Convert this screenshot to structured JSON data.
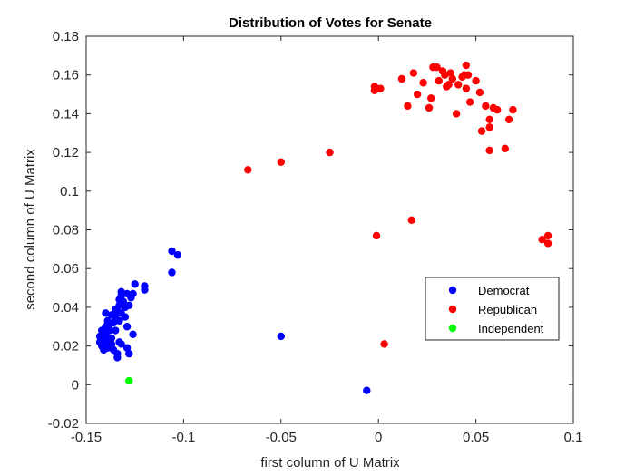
{
  "chart_data": {
    "type": "scatter",
    "title": "Distribution of Votes for Senate",
    "xlabel": "first column of U Matrix",
    "ylabel": "second column of U Matrix",
    "xlim": [
      -0.15,
      0.1
    ],
    "ylim": [
      -0.02,
      0.18
    ],
    "xticks": [
      -0.15,
      -0.1,
      -0.05,
      0,
      0.05,
      0.1
    ],
    "xtick_labels": [
      "-0.15",
      "-0.1",
      "-0.05",
      "0",
      "0.05",
      "0.1"
    ],
    "yticks": [
      -0.02,
      0,
      0.02,
      0.04,
      0.06,
      0.08,
      0.1,
      0.12,
      0.14,
      0.16,
      0.18
    ],
    "ytick_labels": [
      "-0.02",
      "0",
      "0.02",
      "0.04",
      "0.06",
      "0.08",
      "0.1",
      "0.12",
      "0.14",
      "0.16",
      "0.18"
    ],
    "grid": false,
    "legend_position": "lower-right",
    "series": [
      {
        "name": "Democrat",
        "color": "#0000ff",
        "points": [
          [
            -0.143,
            0.025
          ],
          [
            -0.143,
            0.022
          ],
          [
            -0.142,
            0.028
          ],
          [
            -0.142,
            0.02
          ],
          [
            -0.141,
            0.024
          ],
          [
            -0.141,
            0.018
          ],
          [
            -0.14,
            0.03
          ],
          [
            -0.14,
            0.026
          ],
          [
            -0.14,
            0.021
          ],
          [
            -0.14,
            0.037
          ],
          [
            -0.139,
            0.033
          ],
          [
            -0.139,
            0.023
          ],
          [
            -0.139,
            0.019
          ],
          [
            -0.138,
            0.031
          ],
          [
            -0.138,
            0.028
          ],
          [
            -0.137,
            0.036
          ],
          [
            -0.137,
            0.024
          ],
          [
            -0.137,
            0.021
          ],
          [
            -0.136,
            0.032
          ],
          [
            -0.136,
            0.018
          ],
          [
            -0.135,
            0.039
          ],
          [
            -0.135,
            0.035
          ],
          [
            -0.135,
            0.028
          ],
          [
            -0.134,
            0.038
          ],
          [
            -0.134,
            0.014
          ],
          [
            -0.134,
            0.016
          ],
          [
            -0.133,
            0.044
          ],
          [
            -0.133,
            0.041
          ],
          [
            -0.133,
            0.033
          ],
          [
            -0.133,
            0.022
          ],
          [
            -0.132,
            0.048
          ],
          [
            -0.132,
            0.046
          ],
          [
            -0.132,
            0.037
          ],
          [
            -0.132,
            0.021
          ],
          [
            -0.131,
            0.043
          ],
          [
            -0.13,
            0.04
          ],
          [
            -0.13,
            0.035
          ],
          [
            -0.129,
            0.047
          ],
          [
            -0.129,
            0.03
          ],
          [
            -0.129,
            0.019
          ],
          [
            -0.128,
            0.016
          ],
          [
            -0.128,
            0.041
          ],
          [
            -0.127,
            0.045
          ],
          [
            -0.126,
            0.047
          ],
          [
            -0.126,
            0.026
          ],
          [
            -0.125,
            0.052
          ],
          [
            -0.12,
            0.051
          ],
          [
            -0.12,
            0.049
          ],
          [
            -0.106,
            0.069
          ],
          [
            -0.106,
            0.058
          ],
          [
            -0.103,
            0.067
          ],
          [
            -0.05,
            0.025
          ],
          [
            -0.006,
            -0.003
          ]
        ]
      },
      {
        "name": "Republican",
        "color": "#ff0000",
        "points": [
          [
            -0.067,
            0.111
          ],
          [
            -0.05,
            0.115
          ],
          [
            -0.025,
            0.12
          ],
          [
            -0.001,
            0.077
          ],
          [
            0.003,
            0.021
          ],
          [
            0.017,
            0.085
          ],
          [
            -0.002,
            0.154
          ],
          [
            -0.002,
            0.152
          ],
          [
            0.001,
            0.153
          ],
          [
            0.012,
            0.158
          ],
          [
            0.015,
            0.144
          ],
          [
            0.018,
            0.161
          ],
          [
            0.02,
            0.15
          ],
          [
            0.023,
            0.156
          ],
          [
            0.026,
            0.143
          ],
          [
            0.027,
            0.148
          ],
          [
            0.028,
            0.164
          ],
          [
            0.03,
            0.164
          ],
          [
            0.031,
            0.157
          ],
          [
            0.033,
            0.162
          ],
          [
            0.034,
            0.16
          ],
          [
            0.035,
            0.154
          ],
          [
            0.036,
            0.155
          ],
          [
            0.037,
            0.161
          ],
          [
            0.038,
            0.158
          ],
          [
            0.04,
            0.14
          ],
          [
            0.041,
            0.155
          ],
          [
            0.043,
            0.159
          ],
          [
            0.044,
            0.16
          ],
          [
            0.045,
            0.153
          ],
          [
            0.045,
            0.165
          ],
          [
            0.046,
            0.16
          ],
          [
            0.047,
            0.146
          ],
          [
            0.05,
            0.157
          ],
          [
            0.052,
            0.151
          ],
          [
            0.053,
            0.131
          ],
          [
            0.055,
            0.144
          ],
          [
            0.057,
            0.137
          ],
          [
            0.057,
            0.133
          ],
          [
            0.057,
            0.121
          ],
          [
            0.059,
            0.143
          ],
          [
            0.061,
            0.142
          ],
          [
            0.065,
            0.122
          ],
          [
            0.067,
            0.137
          ],
          [
            0.069,
            0.142
          ],
          [
            0.084,
            0.075
          ],
          [
            0.087,
            0.077
          ],
          [
            0.087,
            0.073
          ]
        ]
      },
      {
        "name": "Independent",
        "color": "#00ff00",
        "points": [
          [
            -0.128,
            0.002
          ]
        ]
      }
    ]
  }
}
